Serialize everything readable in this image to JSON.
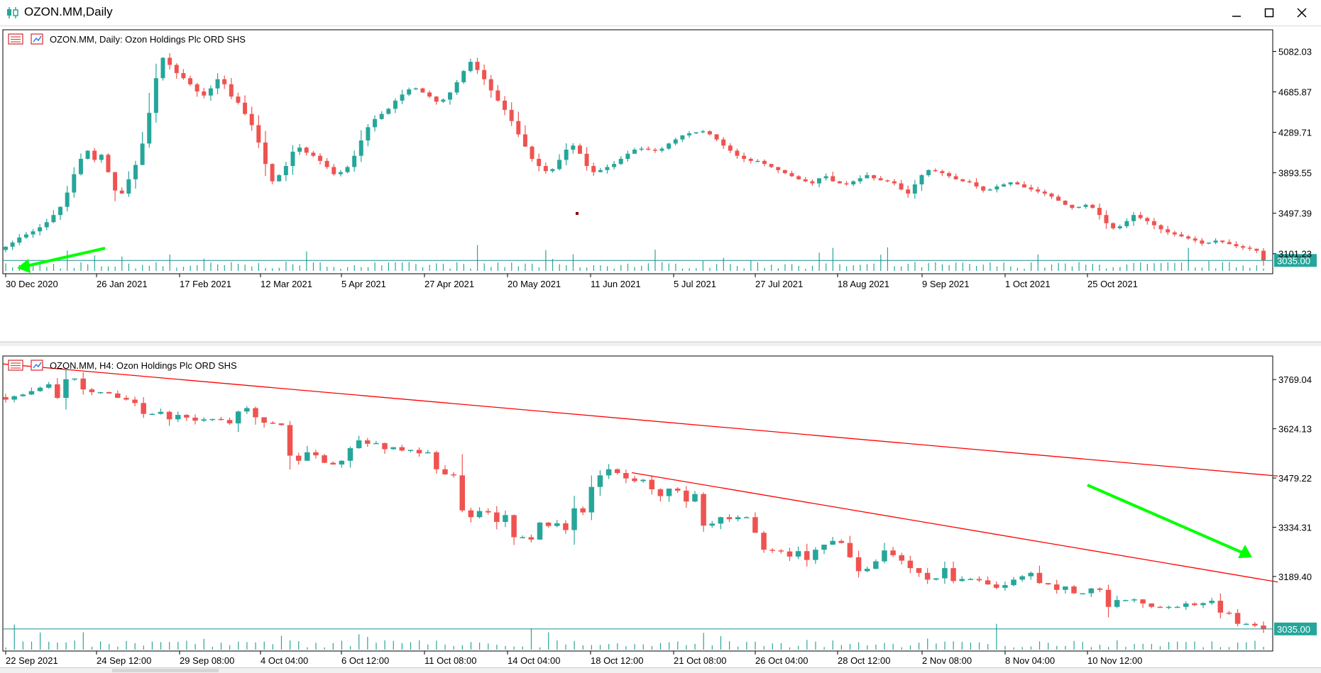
{
  "window": {
    "title": "OZON.MM,Daily",
    "buttons": [
      "minimize",
      "maximize",
      "close"
    ]
  },
  "colors": {
    "bull": "#26a69a",
    "bear": "#ef5350",
    "trendline": "#ff0000",
    "arrow": "#00ff00",
    "price_line": "#1b8f8f",
    "axis": "#000000"
  },
  "chart_data": [
    {
      "type": "candlestick",
      "title": "OZON.MM, Daily:  Ozon Holdings Plc ORD SHS",
      "ylim": [
        2905,
        5280
      ],
      "yticks": [
        "5082.03",
        "4685.87",
        "4289.71",
        "3893.55",
        "3497.39",
        "3101.23"
      ],
      "last_price": "3035.00",
      "xticks": [
        "30 Dec 2020",
        "26 Jan 2021",
        "17 Feb 2021",
        "12 Mar 2021",
        "5 Apr 2021",
        "27 Apr 2021",
        "20 May 2021",
        "11 Jun 2021",
        "5 Jul 2021",
        "27 Jul 2021",
        "18 Aug 2021",
        "9 Sep 2021",
        "1 Oct 2021",
        "25 Oct 2021"
      ],
      "close_series": [
        3170,
        3210,
        3260,
        3290,
        3320,
        3360,
        3410,
        3480,
        3560,
        3700,
        3880,
        4030,
        4110,
        4020,
        4070,
        3900,
        3720,
        3690,
        3830,
        3970,
        4180,
        4480,
        4820,
        5020,
        4950,
        4870,
        4820,
        4760,
        4690,
        4650,
        4720,
        4810,
        4760,
        4640,
        4580,
        4470,
        4360,
        4190,
        3980,
        3810,
        3870,
        3960,
        4100,
        4140,
        4090,
        4060,
        4010,
        3950,
        3880,
        3900,
        3950,
        4060,
        4210,
        4340,
        4420,
        4470,
        4520,
        4600,
        4660,
        4710,
        4720,
        4680,
        4640,
        4590,
        4610,
        4680,
        4780,
        4890,
        4980,
        4900,
        4810,
        4700,
        4600,
        4510,
        4400,
        4270,
        4150,
        4030,
        3960,
        3910,
        3930,
        4020,
        4120,
        4160,
        4080,
        3960,
        3900,
        3920,
        3950,
        3980,
        4030,
        4080,
        4120,
        4130,
        4120,
        4110,
        4130,
        4180,
        4220,
        4260,
        4280,
        4290,
        4300,
        4270,
        4220,
        4160,
        4110,
        4060,
        4030,
        4010,
        4010,
        3980,
        3950,
        3920,
        3890,
        3860,
        3830,
        3810,
        3790,
        3840,
        3860,
        3810,
        3790,
        3780,
        3810,
        3840,
        3870,
        3840,
        3820,
        3810,
        3790,
        3730,
        3690,
        3780,
        3870,
        3920,
        3910,
        3890,
        3860,
        3830,
        3810,
        3800,
        3760,
        3720,
        3730,
        3760,
        3780,
        3800,
        3780,
        3750,
        3730,
        3710,
        3690,
        3660,
        3620,
        3580,
        3550,
        3560,
        3580,
        3550,
        3480,
        3400,
        3350,
        3370,
        3420,
        3480,
        3450,
        3420,
        3380,
        3340,
        3310,
        3290,
        3270,
        3250,
        3230,
        3200,
        3210,
        3230,
        3215,
        3195,
        3175,
        3160,
        3150,
        3130,
        3035
      ]
    },
    {
      "type": "candlestick",
      "title": "OZON.MM, H4:  Ozon Holdings Plc ORD SHS",
      "ylim": [
        2970,
        3830
      ],
      "yticks": [
        "3769.04",
        "3624.13",
        "3479.22",
        "3334.31",
        "3189.40"
      ],
      "last_price": "3035.00",
      "xticks": [
        "22 Sep 2021",
        "24 Sep 12:00",
        "29 Sep 08:00",
        "4 Oct 04:00",
        "6 Oct 12:00",
        "11 Oct 08:00",
        "14 Oct 04:00",
        "18 Oct 12:00",
        "21 Oct 08:00",
        "26 Oct 04:00",
        "28 Oct 12:00",
        "2 Nov 08:00",
        "8 Nov 04:00",
        "10 Nov 12:00"
      ],
      "trendline_1": [
        [
          0,
          3815
        ],
        [
          147,
          3485
        ]
      ],
      "trendline_2": [
        [
          73,
          3495
        ],
        [
          147,
          3173
        ]
      ],
      "close_series": [
        3710,
        3720,
        3725,
        3735,
        3745,
        3755,
        3715,
        3770,
        3772,
        3740,
        3732,
        3732,
        3728,
        3715,
        3710,
        3700,
        3668,
        3668,
        3674,
        3652,
        3665,
        3657,
        3648,
        3652,
        3653,
        3650,
        3640,
        3675,
        3685,
        3658,
        3642,
        3640,
        3635,
        3545,
        3530,
        3555,
        3546,
        3524,
        3519,
        3530,
        3567,
        3590,
        3580,
        3582,
        3564,
        3570,
        3560,
        3562,
        3552,
        3555,
        3505,
        3490,
        3487,
        3384,
        3364,
        3382,
        3378,
        3350,
        3370,
        3305,
        3305,
        3298,
        3348,
        3338,
        3346,
        3326,
        3390,
        3378,
        3453,
        3487,
        3505,
        3494,
        3478,
        3470,
        3474,
        3446,
        3426,
        3448,
        3442,
        3410,
        3432,
        3339,
        3345,
        3364,
        3358,
        3364,
        3364,
        3318,
        3268,
        3266,
        3263,
        3248,
        3264,
        3238,
        3268,
        3283,
        3294,
        3288,
        3246,
        3205,
        3212,
        3234,
        3266,
        3252,
        3236,
        3214,
        3200,
        3180,
        3184,
        3214,
        3176,
        3182,
        3182,
        3178,
        3166,
        3156,
        3164,
        3180,
        3190,
        3200,
        3170,
        3166,
        3150,
        3160,
        3140,
        3140,
        3154,
        3150,
        3100,
        3120,
        3120,
        3122,
        3110,
        3100,
        3098,
        3100,
        3100,
        3110,
        3105,
        3111,
        3118,
        3083,
        3082,
        3050,
        3050,
        3045,
        3035
      ]
    }
  ]
}
